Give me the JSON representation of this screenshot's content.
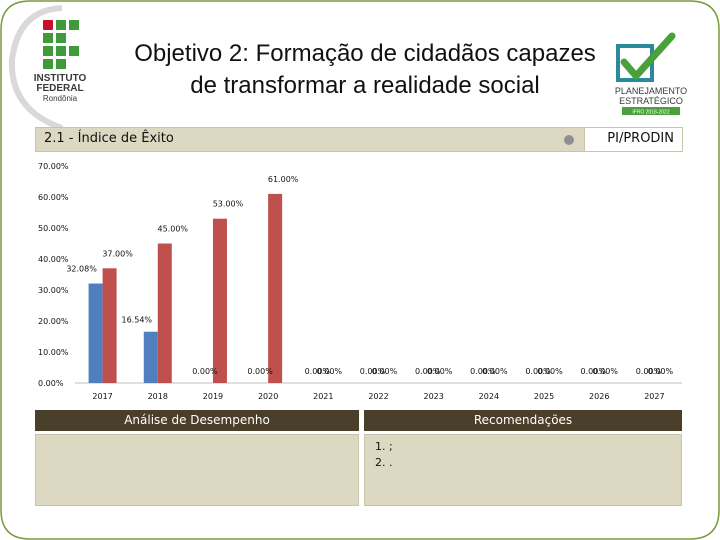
{
  "slide": {
    "title_line1": "Objetivo 2: Formação de cidadãos capazes",
    "title_line2": "de transformar a realidade social",
    "logo_left": {
      "line1": "INSTITUTO",
      "line2": "FEDERAL",
      "line3": "Rondônia"
    },
    "logo_right": {
      "line1": "PLANEJAMENTO",
      "line2": "ESTRATÉGICO",
      "line3": "IFRO 2018-2022"
    }
  },
  "section": {
    "title": "2.1 - Índice de Êxito",
    "org": "PI/PRODIN"
  },
  "chart_data": {
    "type": "bar",
    "categories": [
      "2017",
      "2018",
      "2019",
      "2020",
      "2021",
      "2022",
      "2023",
      "2024",
      "2025",
      "2026",
      "2027"
    ],
    "ylim": [
      0,
      70
    ],
    "yticks": [
      0,
      10,
      20,
      30,
      40,
      50,
      60,
      70
    ],
    "ytick_labels": [
      "0.00%",
      "10.00%",
      "20.00%",
      "30.00%",
      "40.00%",
      "50.00%",
      "60.00%",
      "70.00%"
    ],
    "series": [
      {
        "color": "#4f7fbf",
        "values": [
          32.08,
          16.54,
          0,
          0,
          0,
          0,
          0,
          0,
          0,
          0,
          0
        ],
        "labels": [
          "32.08%",
          "16.54%",
          "",
          "",
          "0.00%",
          "0.00%",
          "0.00%",
          "0.00%",
          "0.00%",
          "0.00%",
          "0.00%"
        ]
      },
      {
        "color": "#c0504d",
        "values": [
          37,
          45,
          53,
          61,
          0,
          0,
          0,
          0,
          0,
          0,
          0
        ],
        "labels": [
          "37.00%",
          "45.00%",
          "53.00%",
          "61.00%",
          "0.00%",
          "0.00%",
          "0.00%",
          "0.00%",
          "0.00%",
          "0.00%",
          "0.00%"
        ]
      }
    ],
    "standalone_labels": [
      "0.00%",
      "0.00%"
    ],
    "grid": false,
    "legend": "none"
  },
  "panels": {
    "analysis_title": "Análise de Desempenho",
    "recommendations_title": "Recomendações",
    "recommendations": [
      "1. ;",
      "2. ."
    ]
  },
  "colors": {
    "frame": "#7a9a3a",
    "bar": "#ddd8c2",
    "header": "#4a3f2a"
  }
}
